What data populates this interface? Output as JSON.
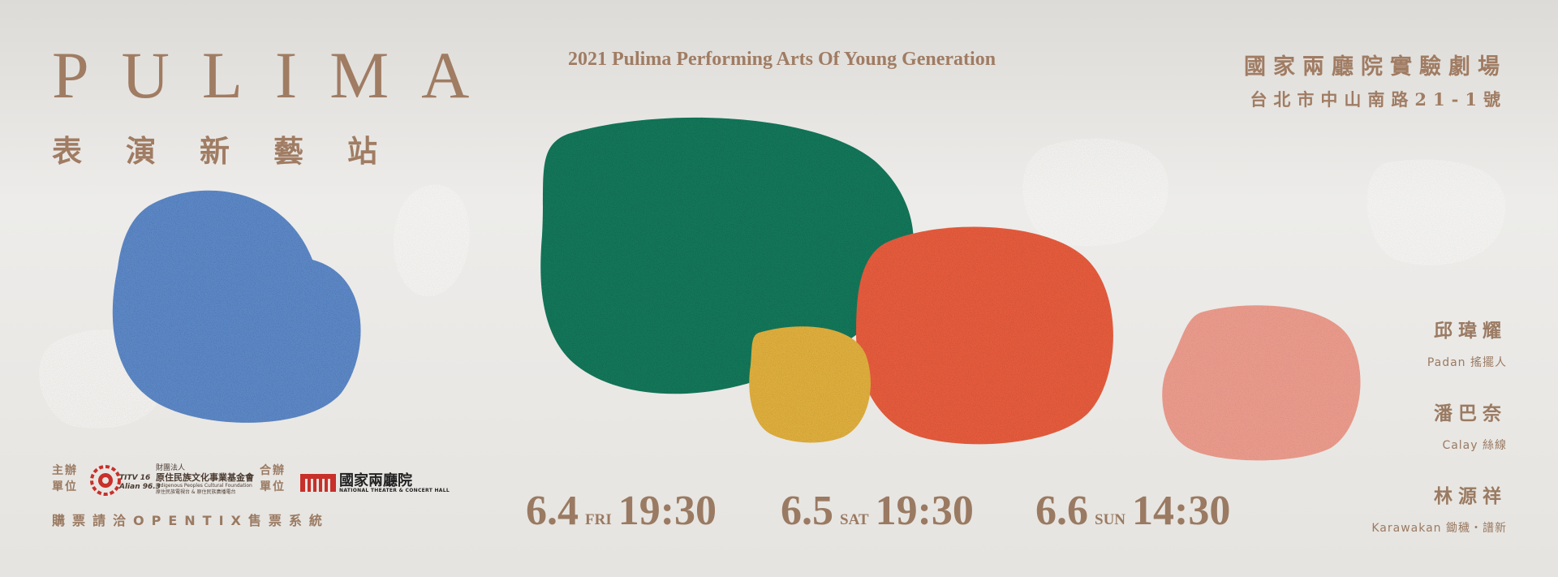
{
  "brand": {
    "title": "PULIMA",
    "subtitle": "表演新藝站"
  },
  "tagline": "2021 Pulima Performing Arts Of  Young Generation",
  "venue": {
    "name": "國家兩廳院實驗劇場",
    "address": "台北市中山南路21-1號"
  },
  "performers": [
    {
      "name": "邱瑋耀",
      "role": "Padan 搖擺人"
    },
    {
      "name": "潘巴奈",
      "role": "Calay 絲線"
    },
    {
      "name": "林源祥",
      "role": "Karawakan 鋤穢・譜新"
    }
  ],
  "dates": [
    {
      "day": "6.4",
      "weekday": "FRI",
      "time": "19:30"
    },
    {
      "day": "6.5",
      "weekday": "SAT",
      "time": "19:30"
    },
    {
      "day": "6.6",
      "weekday": "SUN",
      "time": "14:30"
    }
  ],
  "organizers": {
    "host_label_1": "主辦",
    "host_label_2": "單位",
    "host_org_line1": "財團法人",
    "host_org_line2": "原住民族文化事業基金會",
    "host_org_line3": "Indigenous Peoples Cultural Foundation",
    "host_org_line4": "原住民族電視台 & 原住民族廣播電台",
    "titv_line1": "TITV 16",
    "titv_line2": "Alian 96.3",
    "co_label_1": "合辦",
    "co_label_2": "單位",
    "co_org_name": "國家兩廳院",
    "co_org_en": "NATIONAL THEATER & CONCERT HALL"
  },
  "ticketing": "購票請洽OPENTIX售票系統",
  "colors": {
    "text": "#9a7a62",
    "blue": "#5b86c4",
    "green": "#137558",
    "red": "#e35a3c",
    "yellow": "#dcac3c",
    "pink": "#e8998a",
    "logo_red": "#c8302a"
  }
}
